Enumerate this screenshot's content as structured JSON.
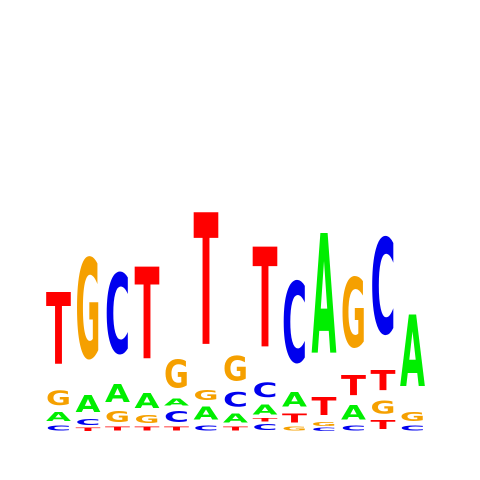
{
  "colors": {
    "A": "#00ee00",
    "C": "#0000ee",
    "G": "#f5a000",
    "T": "#ff0000"
  },
  "columns": [
    [
      [
        "C",
        0.1
      ],
      [
        "A",
        0.18
      ],
      [
        "G",
        0.28
      ],
      [
        "T",
        1.44
      ]
    ],
    [
      [
        "T",
        0.06
      ],
      [
        "C",
        0.12
      ],
      [
        "A",
        0.34
      ],
      [
        "G",
        2.0
      ]
    ],
    [
      [
        "T",
        0.08
      ],
      [
        "G",
        0.22
      ],
      [
        "A",
        0.36
      ],
      [
        "C",
        1.6
      ]
    ],
    [
      [
        "T",
        0.08
      ],
      [
        "G",
        0.16
      ],
      [
        "A",
        0.3
      ],
      [
        "T",
        1.84
      ]
    ],
    [
      [
        "T",
        0.08
      ],
      [
        "C",
        0.22
      ],
      [
        "A",
        0.14
      ],
      [
        "G",
        0.56
      ]
    ],
    [
      [
        "C",
        0.1
      ],
      [
        "A",
        0.26
      ],
      [
        "G",
        0.2
      ],
      [
        "T",
        2.64
      ]
    ],
    [
      [
        "T",
        0.08
      ],
      [
        "A",
        0.18
      ],
      [
        "C",
        0.28
      ],
      [
        "G",
        0.5
      ]
    ],
    [
      [
        "C",
        0.12
      ],
      [
        "T",
        0.06
      ],
      [
        "A",
        0.2
      ],
      [
        "C",
        0.28
      ],
      [
        "T",
        2.0
      ]
    ],
    [
      [
        "G",
        0.08
      ],
      [
        "T",
        0.18
      ],
      [
        "A",
        0.28
      ],
      [
        "C",
        1.62
      ]
    ],
    [
      [
        "C",
        0.06
      ],
      [
        "G",
        0.08
      ],
      [
        "T",
        0.36
      ],
      [
        "A",
        2.4
      ]
    ],
    [
      [
        "C",
        0.1
      ],
      [
        "A",
        0.28
      ],
      [
        "T",
        0.4
      ],
      [
        "G",
        1.4
      ]
    ],
    [
      [
        "T",
        0.18
      ],
      [
        "G",
        0.26
      ],
      [
        "T",
        0.4
      ],
      [
        "C",
        1.92
      ]
    ],
    [
      [
        "C",
        0.1
      ],
      [
        "G",
        0.18
      ],
      [
        "A",
        1.44
      ]
    ]
  ]
}
